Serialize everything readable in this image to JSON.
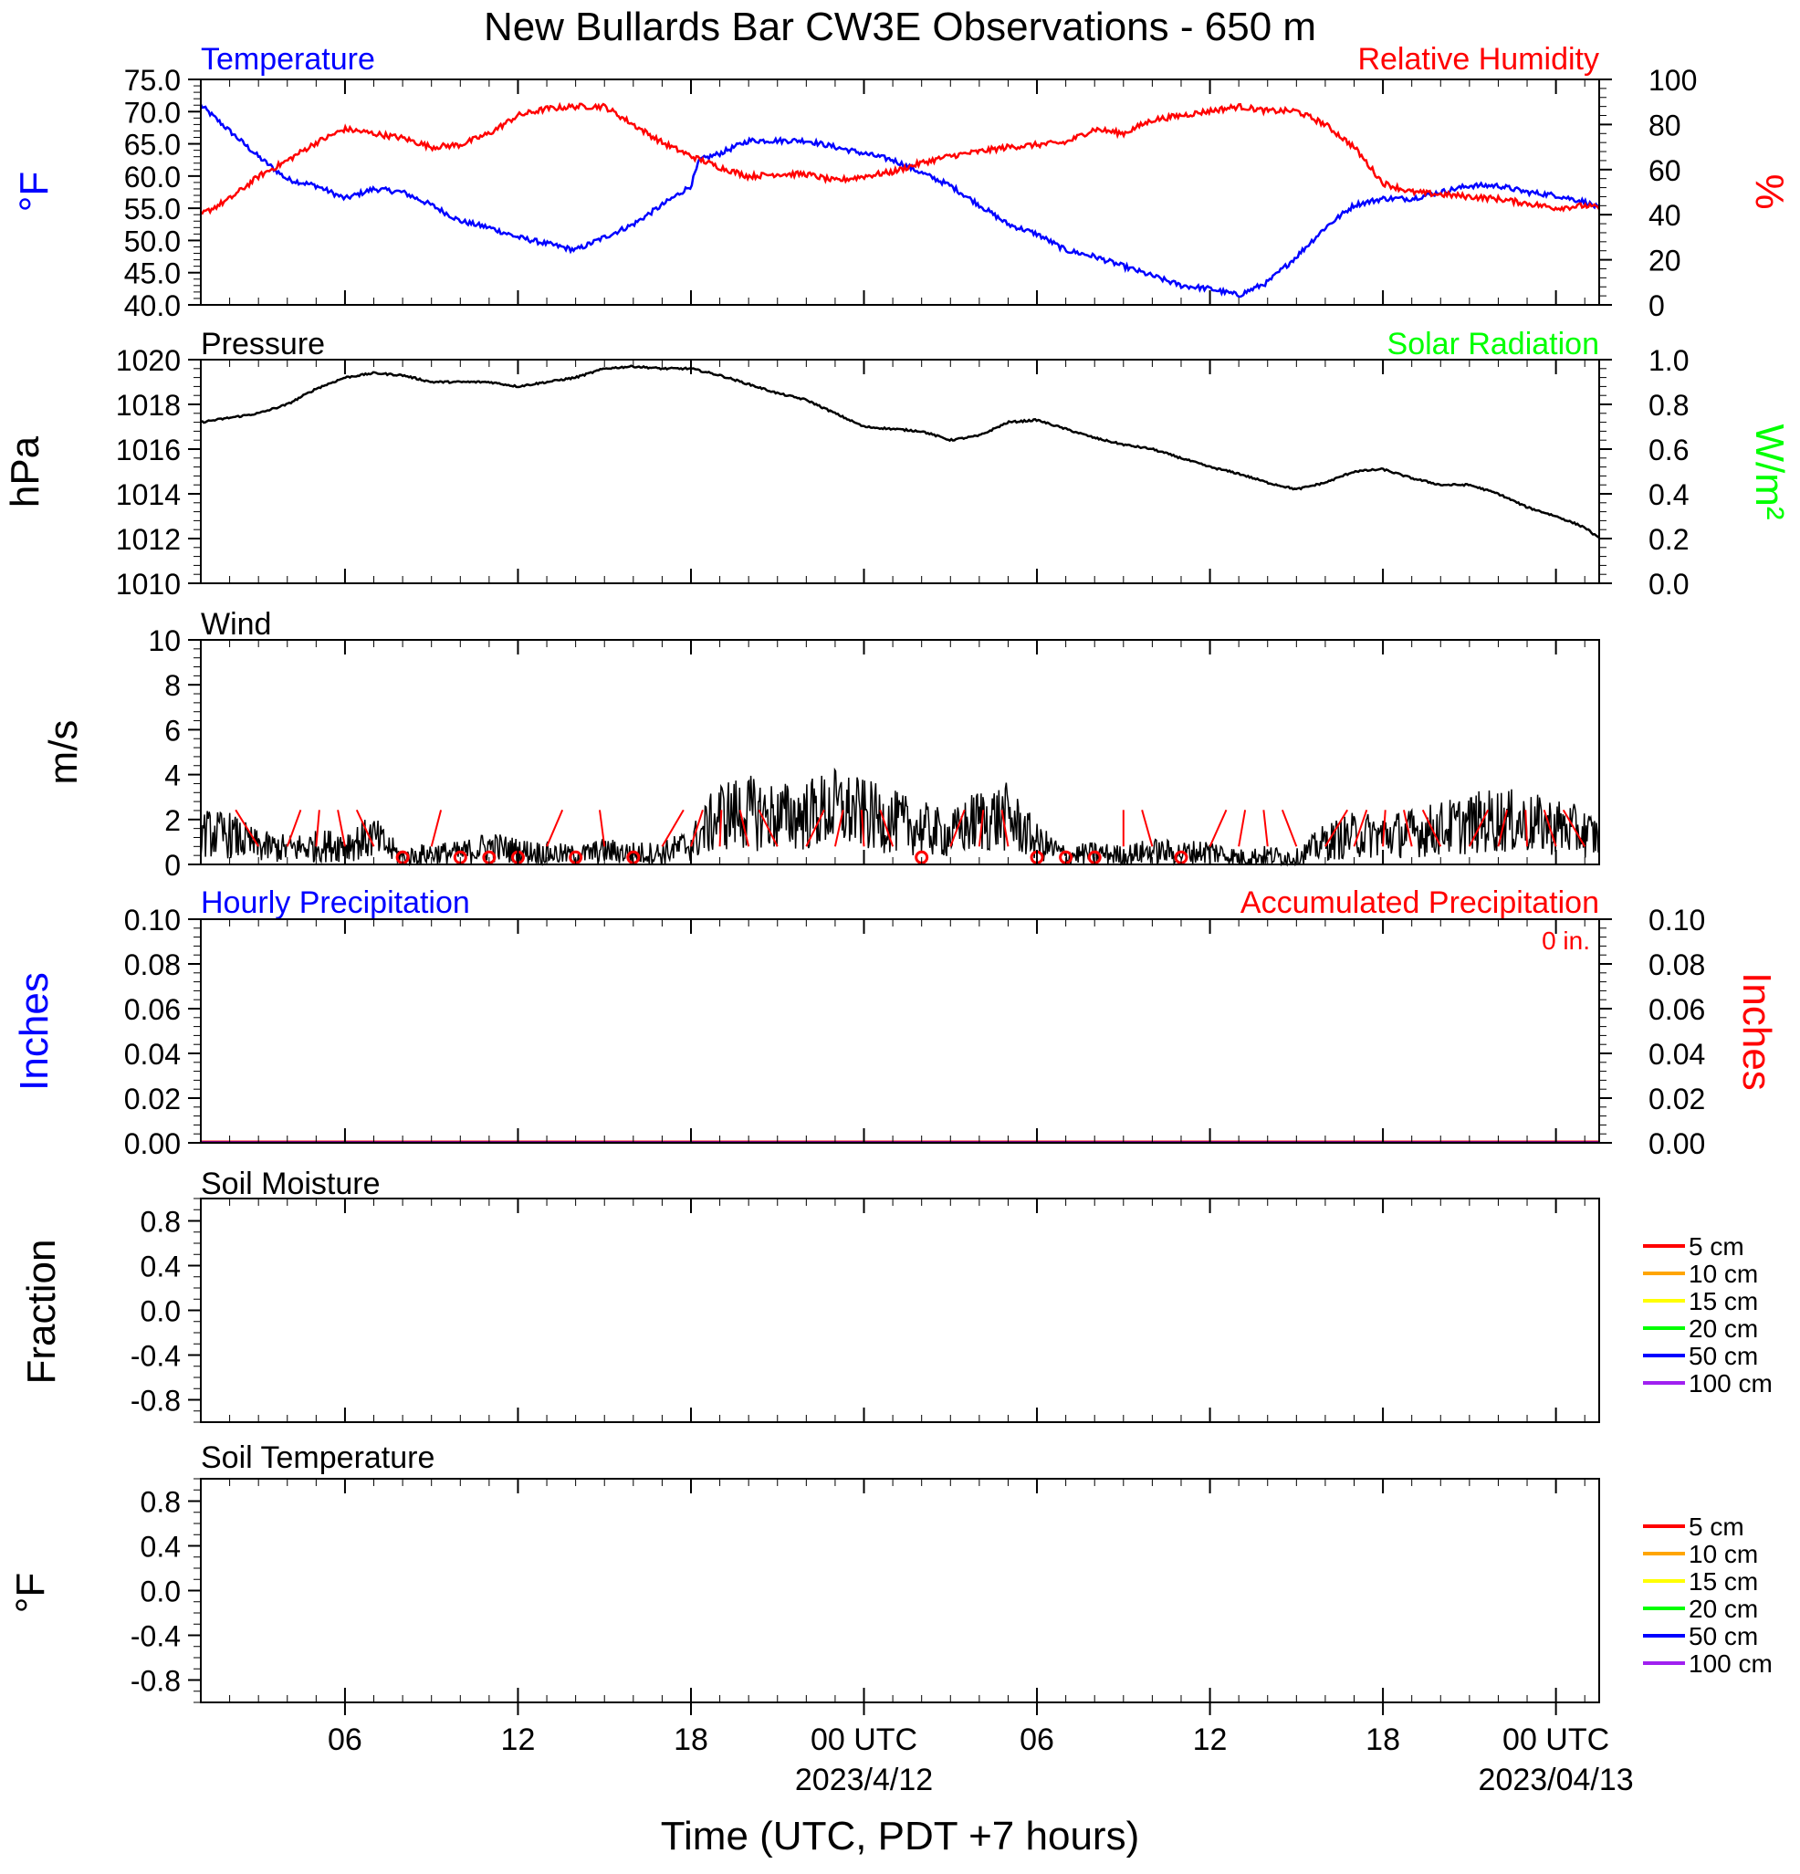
{
  "title": "New Bullards Bar CW3E Observations - 650 m",
  "xlabel": "Time (UTC, PDT +7 hours)",
  "x_axis": {
    "range_hours": [
      0,
      48.5
    ],
    "tick_labels": [
      {
        "hour": 5,
        "label": "06"
      },
      {
        "hour": 11,
        "label": "12"
      },
      {
        "hour": 17,
        "label": "18"
      },
      {
        "hour": 23,
        "label": "00 UTC",
        "sub": "2023/4/12"
      },
      {
        "hour": 29,
        "label": "06"
      },
      {
        "hour": 35,
        "label": "12"
      },
      {
        "hour": 41,
        "label": "18"
      },
      {
        "hour": 47,
        "label": "00 UTC",
        "sub": "2023/04/13"
      }
    ]
  },
  "colors": {
    "temperature": "#0000ff",
    "humidity": "#ff0000",
    "pressure": "#000000",
    "solar": "#00ff00",
    "wind": "#000000",
    "barb": "#ff0000",
    "hourly_precip": "#0000ff",
    "accum_precip": "#ff0000",
    "soil_5": "#ff0000",
    "soil_10": "#ffa500",
    "soil_15": "#ffff00",
    "soil_20": "#00ff00",
    "soil_50": "#0000ff",
    "soil_100": "#a020f0"
  },
  "panels": {
    "temp_rh": {
      "left_title": "Temperature",
      "right_title": "Relative Humidity",
      "left_unit": "°F",
      "right_unit": "%",
      "left_ticks": [
        "75.0",
        "70.0",
        "65.0",
        "60.0",
        "55.0",
        "50.0",
        "45.0",
        "40.0"
      ],
      "right_ticks": [
        "100",
        "80",
        "60",
        "40",
        "20",
        "0"
      ]
    },
    "pressure": {
      "left_title": "Pressure",
      "right_title": "Solar Radiation",
      "left_unit": "hPa",
      "right_unit": "W/m²",
      "left_ticks": [
        "1020",
        "1018",
        "1016",
        "1014",
        "1012",
        "1010"
      ],
      "right_ticks": [
        "1.0",
        "0.8",
        "0.6",
        "0.4",
        "0.2",
        "0.0"
      ]
    },
    "wind": {
      "left_title": "Wind",
      "left_unit": "m/s",
      "left_ticks": [
        "10",
        "8",
        "6",
        "4",
        "2",
        "0"
      ]
    },
    "precip": {
      "left_title": "Hourly Precipitation",
      "right_title": "Accumulated Precipitation",
      "total_label": "0 in.",
      "left_unit": "Inches",
      "right_unit": "Inches",
      "left_ticks": [
        "0.10",
        "0.08",
        "0.06",
        "0.04",
        "0.02",
        "0.00"
      ],
      "right_ticks": [
        "0.10",
        "0.08",
        "0.06",
        "0.04",
        "0.02",
        "0.00"
      ]
    },
    "soil_moisture": {
      "left_title": "Soil Moisture",
      "left_unit": "Fraction",
      "left_ticks": [
        "0.8",
        "0.4",
        "0.0",
        "-0.4",
        "-0.8"
      ],
      "legend": [
        "5 cm",
        "10 cm",
        "15 cm",
        "20 cm",
        "50 cm",
        "100 cm"
      ]
    },
    "soil_temperature": {
      "left_title": "Soil Temperature",
      "left_unit": "°F",
      "left_ticks": [
        "0.8",
        "0.4",
        "0.0",
        "-0.4",
        "-0.8"
      ],
      "legend": [
        "5 cm",
        "10 cm",
        "15 cm",
        "20 cm",
        "50 cm",
        "100 cm"
      ]
    }
  },
  "chart_data": [
    {
      "type": "line",
      "title": "Temperature / Relative Humidity",
      "x_units": "hours UTC from 2023-04-11 01:00",
      "series": [
        {
          "name": "Temperature",
          "axis": "left",
          "units": "°F",
          "x": [
            0,
            1,
            2,
            3,
            4,
            5,
            6,
            7,
            8,
            9,
            10,
            11,
            12,
            13,
            14,
            15,
            16,
            17,
            17.3,
            18,
            19,
            20,
            21,
            22,
            23,
            24,
            25,
            26,
            27,
            28,
            29,
            30,
            31,
            32,
            33,
            34,
            35,
            36,
            37,
            38,
            39,
            40,
            41,
            42,
            43,
            44,
            45,
            46,
            47,
            48,
            48.5
          ],
          "y": [
            71,
            67,
            63,
            59.5,
            58.5,
            56.5,
            58,
            57.5,
            55.5,
            53,
            52,
            50.5,
            49.5,
            48.5,
            50.5,
            52.5,
            55.5,
            58.5,
            62.5,
            63.5,
            65.5,
            65.5,
            65.5,
            64.5,
            63.5,
            62.5,
            60.5,
            58.5,
            55.5,
            52.5,
            51,
            48.5,
            47.5,
            46,
            44.5,
            43,
            42.5,
            41.5,
            43.5,
            47.5,
            52,
            55.5,
            56.5,
            56.5,
            57.5,
            58.5,
            58.5,
            57.5,
            57,
            56,
            55
          ]
        },
        {
          "name": "Relative Humidity",
          "axis": "right",
          "units": "%",
          "x": [
            0,
            1,
            2,
            3,
            4,
            5,
            6,
            7,
            8,
            9,
            10,
            11,
            12,
            13,
            14,
            15,
            16,
            17,
            18,
            19,
            20,
            21,
            22,
            23,
            24,
            25,
            26,
            27,
            28,
            29,
            30,
            31,
            32,
            33,
            34,
            35,
            36,
            37,
            38,
            39,
            40,
            41,
            42,
            43,
            44,
            45,
            46,
            47,
            48,
            48.5
          ],
          "y": [
            40,
            47,
            57,
            64,
            72,
            78,
            76,
            74,
            70,
            71,
            76,
            84,
            87,
            88,
            88,
            80,
            72,
            66,
            61,
            57,
            58,
            58,
            55,
            57,
            59,
            63,
            66,
            68,
            70,
            71,
            72,
            78,
            76,
            82,
            84,
            86,
            88,
            86,
            86,
            80,
            70,
            54,
            50,
            49,
            48,
            47,
            45,
            43,
            44,
            43
          ]
        }
      ],
      "ylim_left": [
        40,
        75
      ],
      "ylim_right": [
        0,
        100
      ]
    },
    {
      "type": "line",
      "title": "Pressure",
      "x_units": "hours UTC from 2023-04-11 01:00",
      "series": [
        {
          "name": "Pressure",
          "units": "hPa",
          "x": [
            0,
            1,
            2,
            3,
            4,
            5,
            6,
            7,
            8,
            9,
            10,
            11,
            12,
            13,
            14,
            15,
            16,
            17,
            18,
            19,
            20,
            21,
            22,
            23,
            24,
            25,
            26,
            27,
            28,
            29,
            30,
            31,
            32,
            33,
            34,
            35,
            36,
            37,
            38,
            39,
            40,
            41,
            42,
            43,
            44,
            45,
            46,
            47,
            48,
            48.5
          ],
          "y": [
            1017.2,
            1017.4,
            1017.6,
            1018.0,
            1018.7,
            1019.2,
            1019.4,
            1019.3,
            1019.0,
            1019.0,
            1019.0,
            1018.8,
            1019.0,
            1019.2,
            1019.6,
            1019.7,
            1019.6,
            1019.6,
            1019.3,
            1018.9,
            1018.5,
            1018.2,
            1017.6,
            1017.0,
            1016.9,
            1016.8,
            1016.4,
            1016.6,
            1017.2,
            1017.3,
            1016.9,
            1016.5,
            1016.2,
            1016.0,
            1015.6,
            1015.2,
            1014.9,
            1014.5,
            1014.2,
            1014.5,
            1015.0,
            1015.1,
            1014.7,
            1014.4,
            1014.4,
            1014.0,
            1013.4,
            1013.0,
            1012.5,
            1012.0
          ]
        }
      ],
      "ylim": [
        1010,
        1020
      ]
    },
    {
      "type": "line",
      "title": "Wind",
      "x_units": "hours UTC from 2023-04-11 01:00",
      "series": [
        {
          "name": "Wind",
          "units": "m/s",
          "x": [
            0,
            1,
            2,
            3,
            4,
            5,
            6,
            7,
            8,
            9,
            10,
            11,
            12,
            13,
            14,
            15,
            16,
            17,
            18,
            19,
            20,
            21,
            22,
            23,
            24,
            25,
            26,
            27,
            28,
            29,
            30,
            31,
            32,
            33,
            34,
            35,
            36,
            37,
            38,
            39,
            40,
            41,
            42,
            43,
            44,
            45,
            46,
            47,
            48,
            48.5
          ],
          "y": [
            1.4,
            1.3,
            0.8,
            0.7,
            0.8,
            0.9,
            1.2,
            0.3,
            0.5,
            0.5,
            0.8,
            0.6,
            0.5,
            0.4,
            0.6,
            0.5,
            0.5,
            0.9,
            2.2,
            2.3,
            2.1,
            2.2,
            2.5,
            2.2,
            1.9,
            1.6,
            1.3,
            2.0,
            2.1,
            1.0,
            0.4,
            0.5,
            0.4,
            0.6,
            0.5,
            0.6,
            0.3,
            0.4,
            0.3,
            1.0,
            1.3,
            1.3,
            1.4,
            1.6,
            1.8,
            2.0,
            1.8,
            1.7,
            1.4,
            1.2
          ]
        }
      ],
      "barbs_hours": [
        2,
        3,
        4,
        5,
        6,
        7,
        8,
        9,
        10,
        11,
        12,
        13,
        14,
        15,
        16,
        17,
        18,
        19,
        20,
        21,
        22,
        23,
        24,
        25,
        26,
        27,
        28,
        29,
        30,
        31,
        32,
        33,
        34,
        35,
        36,
        37,
        38,
        39,
        40,
        41,
        42,
        43,
        44,
        45,
        46,
        47,
        48
      ],
      "calm_hours": [
        7,
        9,
        10,
        11,
        13,
        15,
        25,
        29,
        30,
        31,
        34
      ],
      "ylim": [
        0,
        10
      ]
    },
    {
      "type": "line",
      "title": "Hourly Precipitation / Accumulated Precipitation",
      "series": [
        {
          "name": "Hourly Precipitation",
          "x": [
            0,
            48.5
          ],
          "y": [
            0,
            0
          ]
        },
        {
          "name": "Accumulated Precipitation",
          "x": [
            0,
            48.5
          ],
          "y": [
            0,
            0
          ]
        }
      ],
      "ylim": [
        0,
        0.1
      ]
    },
    {
      "type": "line",
      "title": "Soil Moisture",
      "series": [],
      "legend": [
        "5 cm",
        "10 cm",
        "15 cm",
        "20 cm",
        "50 cm",
        "100 cm"
      ],
      "ylim": [
        -1,
        1
      ]
    },
    {
      "type": "line",
      "title": "Soil Temperature",
      "series": [],
      "legend": [
        "5 cm",
        "10 cm",
        "15 cm",
        "20 cm",
        "50 cm",
        "100 cm"
      ],
      "ylim": [
        -1,
        1
      ]
    }
  ]
}
